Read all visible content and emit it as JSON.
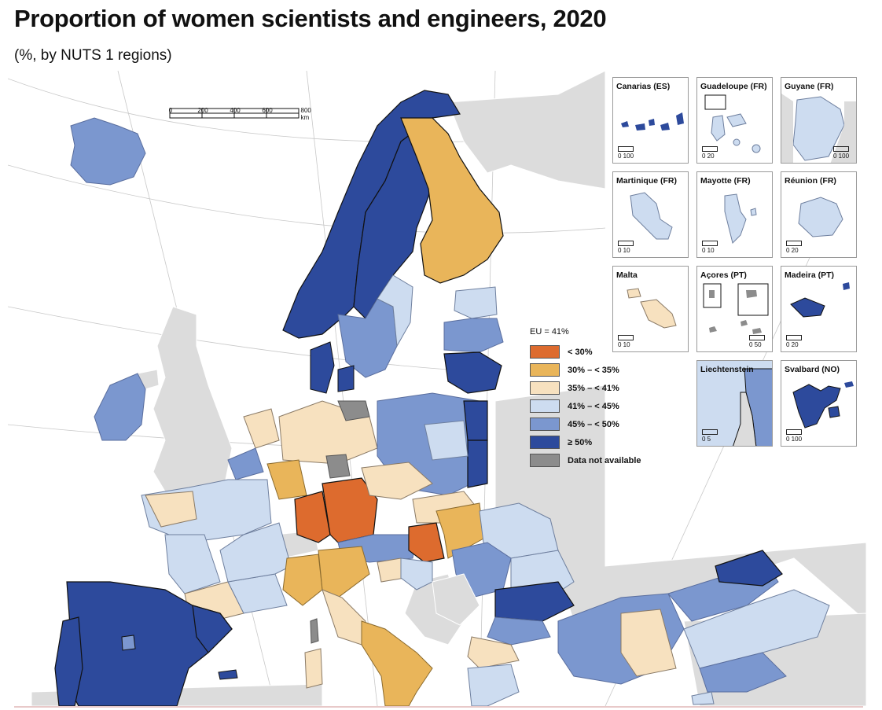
{
  "title": "Proportion of women scientists and engineers, 2020",
  "subtitle": "(%, by NUTS 1 regions)",
  "legend": {
    "header": "EU = 41%",
    "items": [
      {
        "label": "< 30%",
        "color": "#dd6b2e"
      },
      {
        "label": "30% – < 35%",
        "color": "#e9b55a"
      },
      {
        "label": "35% – < 41%",
        "color": "#f7e1bf"
      },
      {
        "label": "41% – < 45%",
        "color": "#cddcf0"
      },
      {
        "label": "45% – < 50%",
        "color": "#7b97cf"
      },
      {
        "label": "≥ 50%",
        "color": "#2d4a9c"
      },
      {
        "label": "Data not available",
        "color": "#8c8c8c"
      }
    ]
  },
  "scalebar": {
    "labels": [
      "0",
      "200",
      "400",
      "600",
      "800 km"
    ]
  },
  "insets": [
    {
      "name": "Canarias (ES)",
      "scale": "0   100"
    },
    {
      "name": "Guadeloupe (FR)",
      "scale": "0   20"
    },
    {
      "name": "Guyane (FR)",
      "scale": "0   100"
    },
    {
      "name": "Martinique (FR)",
      "scale": "0   10"
    },
    {
      "name": "Mayotte (FR)",
      "scale": "0   10"
    },
    {
      "name": "Réunion (FR)",
      "scale": "0   20"
    },
    {
      "name": "Malta",
      "scale": "0   10"
    },
    {
      "name": "Açores (PT)",
      "scale": "0   50"
    },
    {
      "name": "Madeira (PT)",
      "scale": "0   20"
    },
    {
      "name": "Liechtenstein",
      "scale": "0   5"
    },
    {
      "name": "Svalbard (NO)",
      "scale": "0   100"
    }
  ],
  "colors": {
    "lt30": "#dd6b2e",
    "c30_35": "#e9b55a",
    "c35_41": "#f7e1bf",
    "c41_45": "#cddcf0",
    "c45_50": "#7b97cf",
    "ge50": "#2d4a9c",
    "na": "#8c8c8c",
    "nonEU": "#dcdcdc"
  },
  "regions": [
    {
      "name": "Iceland",
      "class": "c45_50"
    },
    {
      "name": "Norway",
      "class": "ge50"
    },
    {
      "name": "Sweden North",
      "class": "ge50"
    },
    {
      "name": "Sweden South",
      "class": "c45_50"
    },
    {
      "name": "Sweden East",
      "class": "c41_45"
    },
    {
      "name": "Finland",
      "class": "c30_35"
    },
    {
      "name": "Estonia",
      "class": "c41_45"
    },
    {
      "name": "Latvia",
      "class": "c45_50"
    },
    {
      "name": "Lithuania",
      "class": "ge50"
    },
    {
      "name": "Denmark",
      "class": "ge50"
    },
    {
      "name": "Ireland",
      "class": "c45_50"
    },
    {
      "name": "Spain",
      "class": "ge50"
    },
    {
      "name": "Portugal",
      "class": "ge50"
    },
    {
      "name": "Madrid",
      "class": "c45_50"
    },
    {
      "name": "Baden-Württemberg",
      "class": "lt30"
    },
    {
      "name": "Bayern",
      "class": "lt30"
    },
    {
      "name": "Hungary",
      "class": "lt30"
    },
    {
      "name": "Italy North-West",
      "class": "c30_35"
    },
    {
      "name": "Italy North-East",
      "class": "c30_35"
    },
    {
      "name": "Italy South",
      "class": "c30_35"
    },
    {
      "name": "Poland",
      "class": "c45_50"
    },
    {
      "name": "Bulgaria",
      "class": "ge50"
    },
    {
      "name": "Romania East",
      "class": "ge50"
    }
  ]
}
